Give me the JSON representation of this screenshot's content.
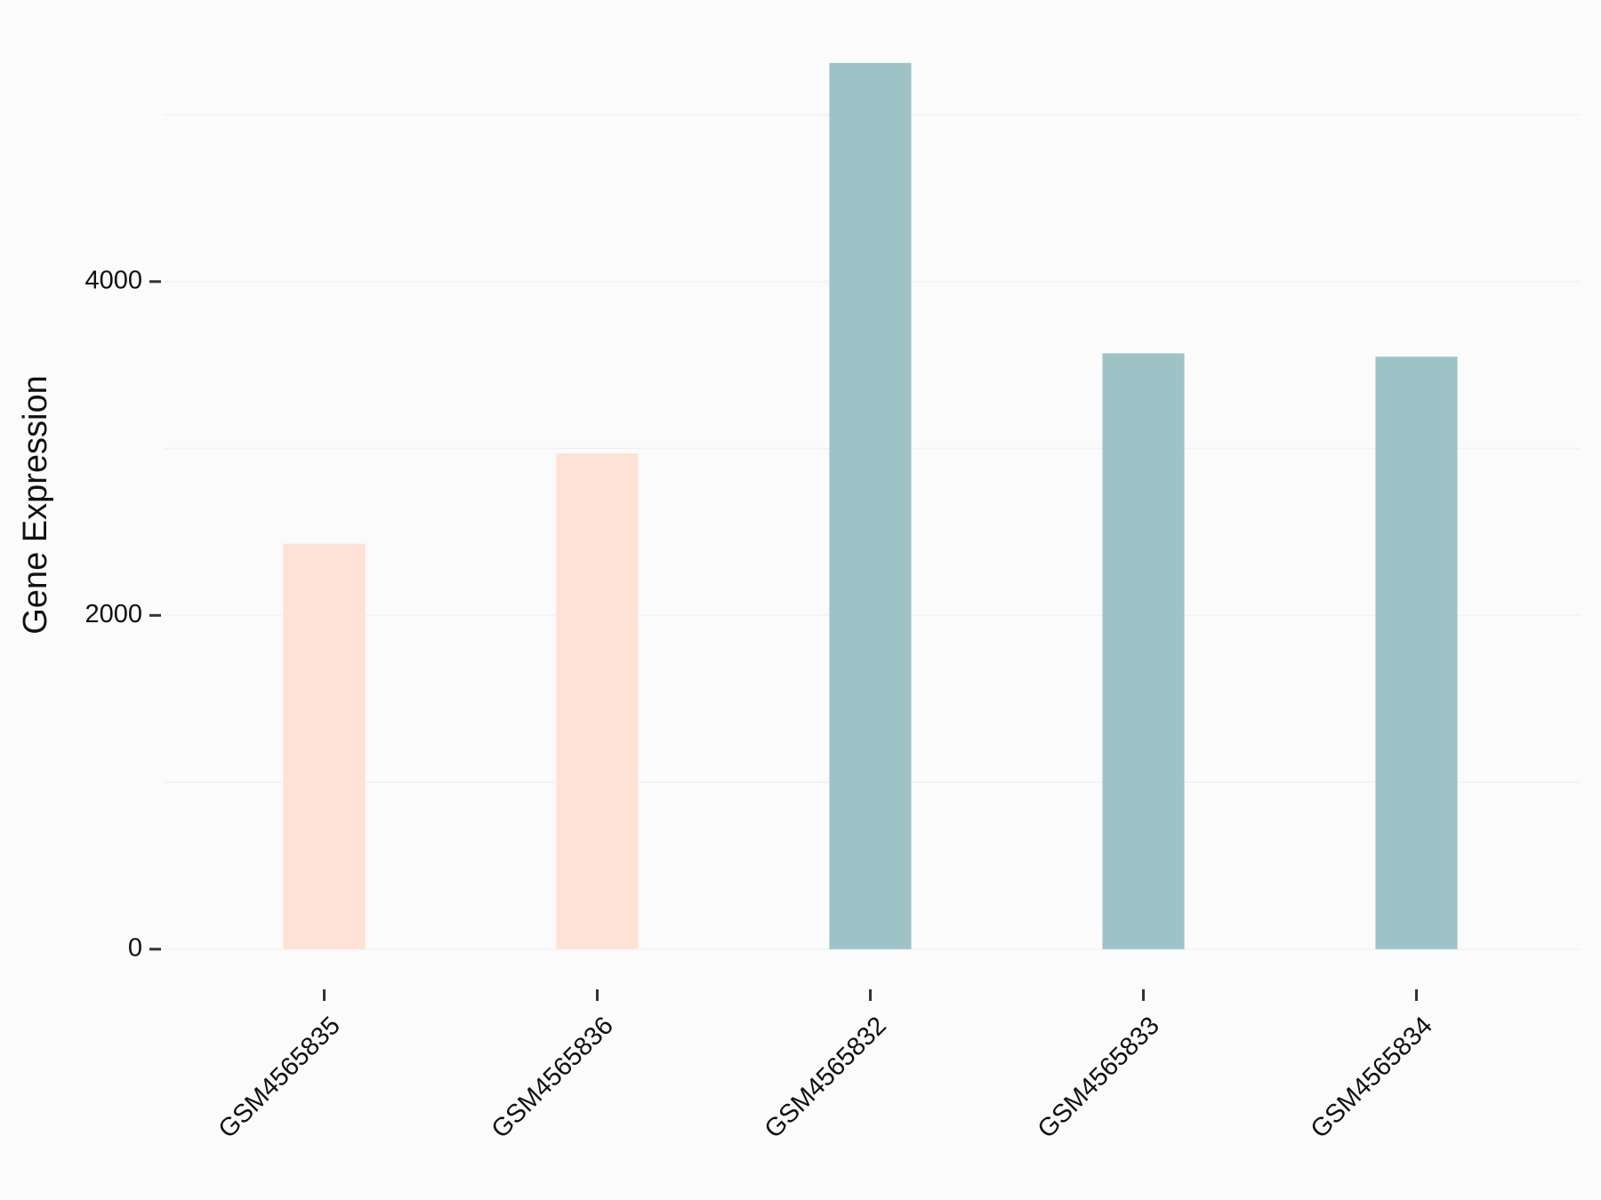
{
  "chart_data": {
    "type": "bar",
    "y_label": "Gene Expression",
    "categories": [
      "GSM4565835",
      "GSM4565836",
      "GSM4565832",
      "GSM4565833",
      "GSM4565834"
    ],
    "values": [
      2430,
      2970,
      5310,
      3570,
      3550
    ],
    "colors": [
      "#ffe1d6",
      "#ffe1d6",
      "#9dc3c7",
      "#9dc3c7",
      "#9dc3c7"
    ],
    "ylim": [
      -150,
      5570
    ],
    "yticks": [
      0,
      2000,
      4000
    ],
    "minor_yticks": [
      1000,
      3000,
      5000
    ],
    "grid": true
  }
}
